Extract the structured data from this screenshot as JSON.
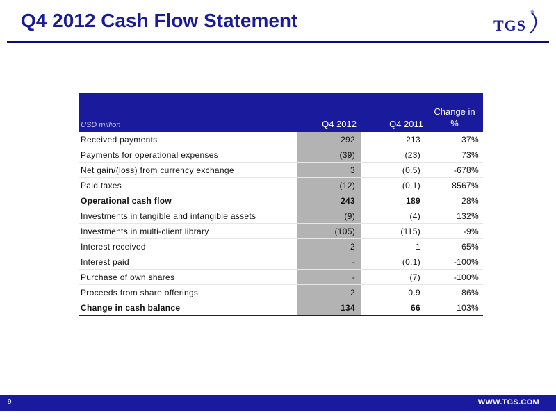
{
  "slide": {
    "title": "Q4 2012 Cash Flow Statement",
    "logo_text": "TGS",
    "page_number": "9",
    "footer_url": "WWW.TGS.COM",
    "brand_color": "#1a1a9c",
    "highlight_column_color": "#b3b3b3"
  },
  "table": {
    "headers": {
      "label": "USD million",
      "q4_2012": "Q4 2012",
      "q4_2011": "Q4 2011",
      "change_line1": "Change in",
      "change_line2": "%"
    },
    "rows": [
      {
        "label": "Received payments",
        "q4_2012": "292",
        "q4_2011": "213",
        "change": "37%"
      },
      {
        "label": "Payments for operational expenses",
        "q4_2012": "(39)",
        "q4_2011": "(23)",
        "change": "73%"
      },
      {
        "label": "Net gain/(loss) from currency exchange",
        "q4_2012": "3",
        "q4_2011": "(0.5)",
        "change": "-678%"
      },
      {
        "label": "Paid taxes",
        "q4_2012": "(12)",
        "q4_2011": "(0.1)",
        "change": "8567%"
      },
      {
        "label": "Operational cash flow",
        "q4_2012": "243",
        "q4_2011": "189",
        "change": "28%"
      },
      {
        "label": "Investments in tangible and intangible assets",
        "q4_2012": "(9)",
        "q4_2011": "(4)",
        "change": "132%"
      },
      {
        "label": "Investments in multi-client library",
        "q4_2012": "(105)",
        "q4_2011": "(115)",
        "change": "-9%"
      },
      {
        "label": "Interest received",
        "q4_2012": "2",
        "q4_2011": "1",
        "change": "65%"
      },
      {
        "label": "Interest paid",
        "q4_2012": "-",
        "q4_2011": "(0.1)",
        "change": "-100%"
      },
      {
        "label": "Purchase of own shares",
        "q4_2012": "-",
        "q4_2011": "(7)",
        "change": "-100%"
      },
      {
        "label": "Proceeds from share offerings",
        "q4_2012": "2",
        "q4_2011": "0.9",
        "change": "86%"
      },
      {
        "label": "Change in cash balance",
        "q4_2012": "134",
        "q4_2011": "66",
        "change": "103%"
      }
    ]
  }
}
